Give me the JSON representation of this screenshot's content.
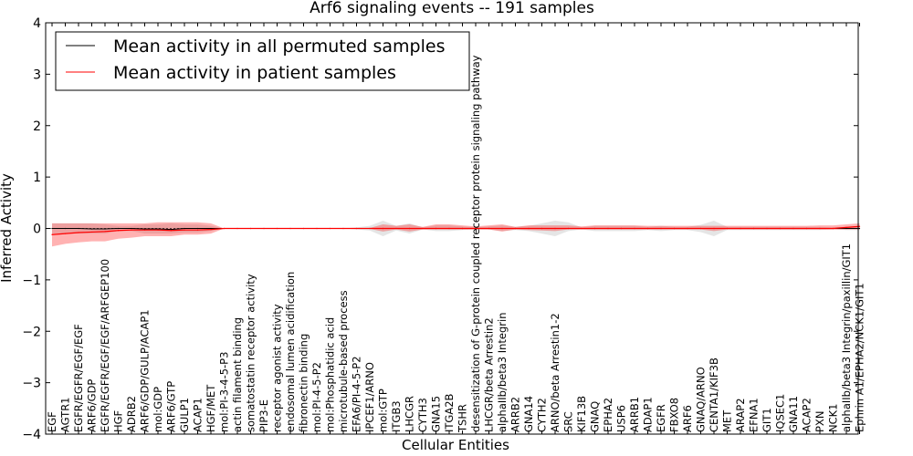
{
  "chart_data": {
    "type": "line",
    "title": "Arf6 signaling events -- 191 samples",
    "xlabel": "Cellular Entities",
    "ylabel": "Inferred Activity",
    "ylim": [
      -4,
      4
    ],
    "yticks": [
      -4,
      -3,
      -2,
      -1,
      0,
      1,
      2,
      3,
      4
    ],
    "legend": {
      "position": "top-left",
      "entries": [
        {
          "label": "Mean activity in all permuted samples",
          "color": "#000000"
        },
        {
          "label": "Mean activity in patient samples",
          "color": "#ff0000"
        }
      ]
    },
    "categories": [
      "EGF",
      "AGTR1",
      "EGFR/EGFR/EGF/EGF",
      "ARF6/GDP",
      "EGFR/EGFR/EGF/EGF/ARFGEP100",
      "HGF",
      "ADRB2",
      "ARF6/GDP/GULP/ACAP1",
      "mol:GDP",
      "ARF6/GTP",
      "GULP1",
      "ACAP1",
      "HGF/MET",
      "mol:PI-3-4-5-P3",
      "actin filament binding",
      "somatostatin receptor activity",
      "PIP3-E",
      "receptor agonist activity",
      "endosomal lumen acidification",
      "fibronectin binding",
      "mol:PI-4-5-P2",
      "mol:Phosphatidic acid",
      "microtubule-based process",
      "EFA6/PI-4-5-P2",
      "IPCEF1/ARNO",
      "mol:GTP",
      "ITGB3",
      "LHCGR",
      "CYTH3",
      "GNA15",
      "ITGA2B",
      "TSHR",
      "desensitization of G-protein coupled receptor protein signaling pathway",
      "LHCGR/beta Arrestin2",
      "alphaIIb/beta3 Integrin",
      "ARRB2",
      "GNA14",
      "CYTH2",
      "ARNO/beta Arrestin1-2",
      "SRC",
      "KIF13B",
      "GNAQ",
      "EPHA2",
      "USP6",
      "ARRB1",
      "ADAP1",
      "EGFR",
      "FBXO8",
      "ARF6",
      "GNAQ/ARNO",
      "CENTA1/KIF3B",
      "MET",
      "ARAP2",
      "EFNA1",
      "GIT1",
      "IQSEC1",
      "GNA11",
      "ACAP2",
      "PXN",
      "NCK1",
      "alphaIIb/beta3 Integrin/paxillin/GIT1",
      "Ephrin A1/EPHA2/NCK1/GIT1"
    ],
    "series": [
      {
        "name": "Mean activity in all permuted samples",
        "color": "#000000",
        "values": [
          0.0,
          0.0,
          0.0,
          -0.01,
          -0.01,
          0.0,
          0.0,
          -0.01,
          -0.01,
          -0.02,
          0.0,
          0.0,
          0.0,
          0.0,
          0.0,
          0.0,
          0.0,
          0.0,
          0.0,
          0.0,
          0.0,
          0.0,
          0.0,
          0.0,
          0.0,
          0.0,
          0.0,
          0.0,
          0.0,
          0.0,
          0.0,
          0.0,
          0.0,
          0.0,
          0.0,
          0.0,
          0.0,
          0.0,
          0.0,
          0.0,
          0.0,
          0.0,
          0.0,
          0.0,
          0.0,
          0.0,
          0.0,
          0.0,
          0.0,
          0.0,
          0.0,
          0.0,
          0.0,
          0.0,
          0.0,
          0.0,
          0.0,
          0.0,
          0.0,
          0.0,
          0.0,
          0.0
        ],
        "lower": [
          -0.1,
          -0.1,
          -0.1,
          -0.1,
          -0.1,
          -0.05,
          -0.05,
          -0.1,
          -0.1,
          -0.1,
          -0.08,
          -0.08,
          -0.05,
          0.0,
          0.0,
          0.0,
          0.0,
          0.0,
          0.0,
          0.0,
          0.0,
          0.0,
          0.0,
          -0.02,
          -0.04,
          -0.15,
          -0.04,
          -0.1,
          -0.02,
          -0.05,
          -0.05,
          -0.03,
          -0.02,
          -0.02,
          -0.05,
          -0.03,
          -0.05,
          -0.1,
          -0.15,
          -0.05,
          -0.02,
          -0.05,
          -0.05,
          -0.05,
          -0.05,
          -0.03,
          -0.05,
          -0.03,
          -0.03,
          -0.07,
          -0.15,
          -0.03,
          -0.03,
          -0.03,
          -0.03,
          -0.03,
          -0.03,
          -0.03,
          -0.03,
          -0.02,
          -0.03,
          -0.03
        ],
        "upper": [
          0.1,
          0.1,
          0.1,
          0.1,
          0.08,
          0.05,
          0.05,
          0.08,
          0.08,
          0.1,
          0.08,
          0.08,
          0.05,
          0.0,
          0.0,
          0.0,
          0.0,
          0.0,
          0.0,
          0.0,
          0.0,
          0.0,
          0.0,
          0.02,
          0.05,
          0.15,
          0.05,
          0.1,
          0.02,
          0.06,
          0.06,
          0.04,
          0.02,
          0.04,
          0.06,
          0.03,
          0.05,
          0.1,
          0.15,
          0.12,
          0.02,
          0.05,
          0.05,
          0.05,
          0.05,
          0.03,
          0.05,
          0.03,
          0.03,
          0.07,
          0.15,
          0.03,
          0.03,
          0.03,
          0.03,
          0.03,
          0.03,
          0.03,
          0.03,
          0.02,
          0.03,
          0.03
        ]
      },
      {
        "name": "Mean activity in patient samples",
        "color": "#ff0000",
        "values": [
          -0.12,
          -0.1,
          -0.08,
          -0.07,
          -0.06,
          -0.04,
          -0.03,
          -0.03,
          -0.03,
          -0.04,
          -0.03,
          -0.03,
          -0.02,
          0.0,
          0.0,
          0.0,
          0.0,
          0.0,
          0.0,
          0.0,
          0.0,
          0.0,
          0.0,
          0.0,
          0.0,
          0.0,
          0.0,
          0.0,
          0.0,
          0.0,
          0.0,
          0.0,
          0.0,
          0.0,
          0.0,
          0.0,
          0.0,
          0.0,
          0.0,
          0.0,
          0.0,
          0.0,
          0.0,
          0.0,
          0.0,
          0.0,
          0.0,
          0.0,
          0.0,
          0.0,
          0.0,
          0.0,
          0.0,
          0.0,
          0.0,
          0.0,
          0.0,
          0.0,
          0.0,
          0.0,
          0.02,
          0.04
        ],
        "lower": [
          -0.35,
          -0.3,
          -0.27,
          -0.25,
          -0.25,
          -0.2,
          -0.18,
          -0.15,
          -0.15,
          -0.15,
          -0.12,
          -0.12,
          -0.1,
          0.0,
          0.0,
          0.0,
          0.0,
          0.0,
          0.0,
          0.0,
          0.0,
          0.0,
          0.0,
          -0.01,
          -0.01,
          -0.06,
          -0.02,
          -0.06,
          -0.02,
          -0.02,
          -0.02,
          -0.02,
          -0.02,
          -0.02,
          -0.06,
          -0.02,
          -0.03,
          -0.04,
          -0.05,
          -0.02,
          -0.02,
          -0.02,
          -0.02,
          -0.02,
          -0.02,
          -0.02,
          -0.02,
          -0.02,
          -0.02,
          -0.02,
          -0.05,
          -0.02,
          -0.02,
          -0.02,
          -0.02,
          -0.02,
          -0.02,
          -0.02,
          -0.02,
          -0.02,
          -0.02,
          -0.02
        ],
        "upper": [
          0.1,
          0.1,
          0.1,
          0.1,
          0.1,
          0.1,
          0.1,
          0.1,
          0.12,
          0.12,
          0.12,
          0.12,
          0.1,
          0.0,
          0.0,
          0.0,
          0.0,
          0.0,
          0.0,
          0.0,
          0.0,
          0.0,
          0.0,
          0.01,
          0.01,
          0.08,
          0.05,
          0.08,
          0.03,
          0.08,
          0.08,
          0.06,
          0.04,
          0.06,
          0.08,
          0.03,
          0.06,
          0.06,
          0.06,
          0.06,
          0.04,
          0.06,
          0.06,
          0.06,
          0.06,
          0.05,
          0.05,
          0.05,
          0.05,
          0.05,
          0.05,
          0.05,
          0.05,
          0.05,
          0.05,
          0.05,
          0.05,
          0.05,
          0.06,
          0.06,
          0.08,
          0.1
        ]
      }
    ]
  }
}
